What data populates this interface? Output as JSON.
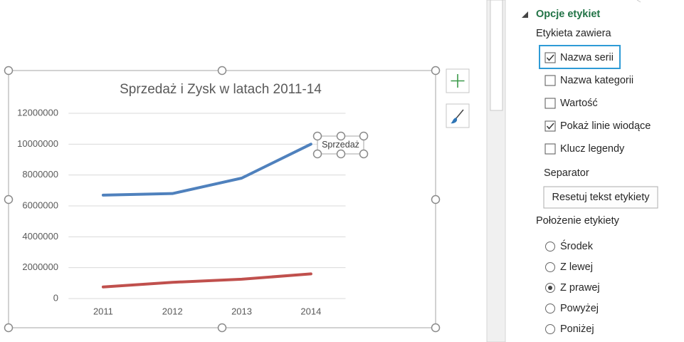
{
  "chart_data": {
    "type": "line",
    "title": "Sprzedaż i Zysk w latach 2011-14",
    "categories": [
      "2011",
      "2012",
      "2013",
      "2014"
    ],
    "series": [
      {
        "name": "Sprzedaż",
        "color": "#4f81bd",
        "values": [
          6700000,
          6800000,
          7800000,
          10000000
        ]
      },
      {
        "color": "#c0504d",
        "values": [
          750000,
          1050000,
          1250000,
          1600000
        ]
      }
    ],
    "ylim": [
      0,
      12000000
    ],
    "yticks": [
      0,
      2000000,
      4000000,
      6000000,
      8000000,
      10000000,
      12000000
    ],
    "grid": true
  },
  "panel": {
    "section": "Opcje etykiet",
    "contains_heading": "Etykieta zawiera",
    "checkboxes": [
      {
        "label": "Nazwa serii",
        "checked": true
      },
      {
        "label": "Nazwa kategorii",
        "checked": false
      },
      {
        "label": "Wartość",
        "checked": false
      },
      {
        "label": "Pokaż linie wiodące",
        "checked": true
      },
      {
        "label": "Klucz legendy",
        "checked": false
      }
    ],
    "separator": "Separator",
    "reset_button": "Resetuj tekst etykiety",
    "position_heading": "Położenie etykiety",
    "radios": [
      {
        "label": "Środek",
        "selected": false
      },
      {
        "label": "Z lewej",
        "selected": false
      },
      {
        "label": "Z prawej",
        "selected": true
      },
      {
        "label": "Powyżej",
        "selected": false
      },
      {
        "label": "Poniżej",
        "selected": false
      }
    ]
  }
}
